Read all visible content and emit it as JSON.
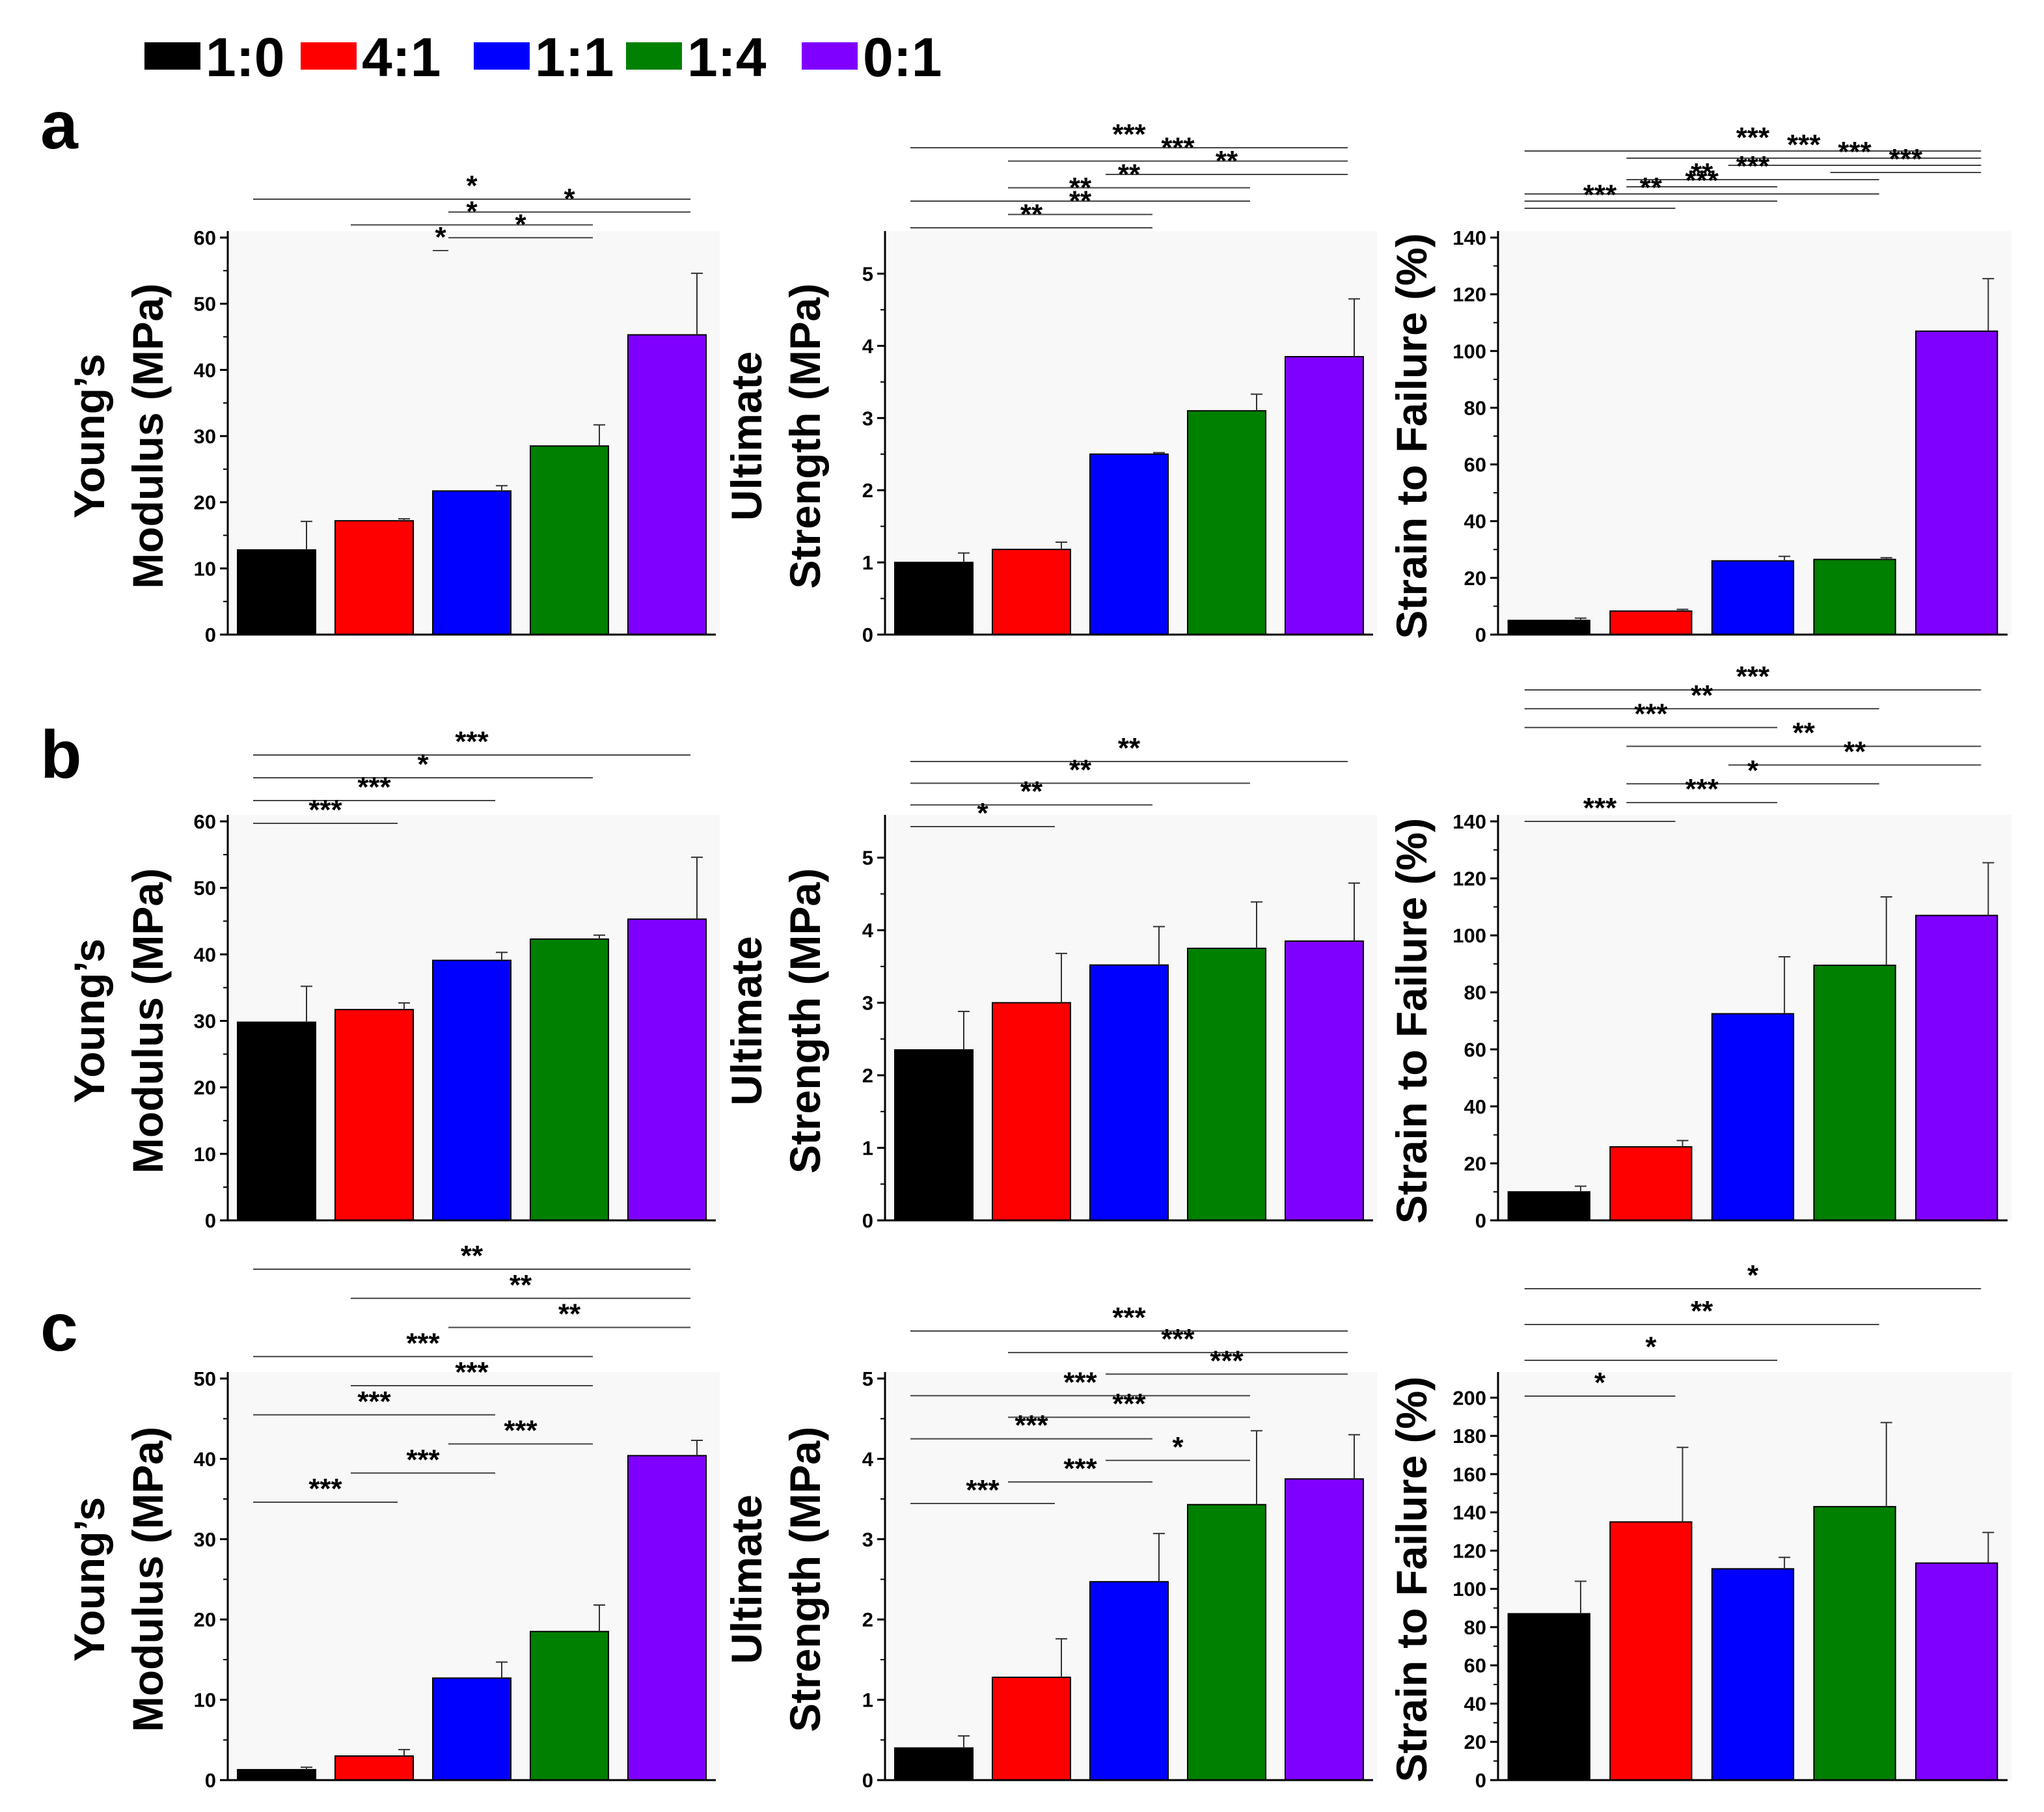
{
  "legend": [
    {
      "label": "1:0",
      "color": "#000000"
    },
    {
      "label": "4:1",
      "color": "#ff0000"
    },
    {
      "label": "1:1",
      "color": "#0000ff"
    },
    {
      "label": "1:4",
      "color": "#008000"
    },
    {
      "label": "0:1",
      "color": "#8000ff"
    }
  ],
  "rows": [
    "a",
    "b",
    "c"
  ],
  "chart_data": [
    {
      "type": "bar",
      "row": "a",
      "ylabel_lines": [
        "Young’s",
        "Modulus (MPa)"
      ],
      "categories": [
        "1:0",
        "4:1",
        "1:1",
        "1:4",
        "0:1"
      ],
      "values": [
        12.8,
        17.2,
        21.7,
        28.5,
        45.3
      ],
      "errors": [
        4.3,
        0.3,
        0.8,
        3.2,
        9.3
      ],
      "ylim": [
        0,
        60
      ],
      "yticks": [
        0,
        10,
        20,
        30,
        40,
        50,
        60
      ],
      "significance": [
        {
          "from": 0,
          "to": 4,
          "label": "*"
        },
        {
          "from": 2,
          "to": 4,
          "label": "*"
        },
        {
          "from": 1,
          "to": 3,
          "label": "*"
        },
        {
          "from": 2,
          "to": 3,
          "label": "*"
        },
        {
          "from": 2,
          "to": 2.3,
          "label": "*"
        }
      ]
    },
    {
      "type": "bar",
      "row": "a",
      "ylabel_lines": [
        "Ultimate",
        "Strength (MPa)"
      ],
      "categories": [
        "1:0",
        "4:1",
        "1:1",
        "1:4",
        "0:1"
      ],
      "values": [
        1.0,
        1.18,
        2.5,
        3.1,
        3.85
      ],
      "errors": [
        0.13,
        0.1,
        0.02,
        0.23,
        0.8
      ],
      "ylim": [
        0,
        5.5
      ],
      "yticks": [
        0,
        1,
        2,
        3,
        4,
        5
      ],
      "significance": [
        {
          "from": 0,
          "to": 4,
          "label": "***"
        },
        {
          "from": 1,
          "to": 4,
          "label": "***"
        },
        {
          "from": 2,
          "to": 4,
          "label": "**"
        },
        {
          "from": 1,
          "to": 3,
          "label": "**"
        },
        {
          "from": 0,
          "to": 3,
          "label": "**"
        },
        {
          "from": 1,
          "to": 2,
          "label": "**"
        },
        {
          "from": 0,
          "to": 2,
          "label": "**"
        }
      ]
    },
    {
      "type": "bar",
      "row": "a",
      "ylabel_lines": [
        "Strain to Failure (%)"
      ],
      "categories": [
        "1:0",
        "4:1",
        "1:1",
        "1:4",
        "0:1"
      ],
      "values": [
        5.0,
        8.3,
        26.0,
        26.5,
        107.0
      ],
      "errors": [
        0.8,
        0.6,
        1.6,
        0.6,
        18.5
      ],
      "ylim": [
        0,
        140
      ],
      "yticks": [
        0,
        20,
        40,
        60,
        80,
        100,
        120,
        140
      ],
      "significance": [
        {
          "from": 0,
          "to": 4,
          "label": "***"
        },
        {
          "from": 1,
          "to": 4,
          "label": "***"
        },
        {
          "from": 2,
          "to": 4,
          "label": "***"
        },
        {
          "from": 3,
          "to": 4,
          "label": "***"
        },
        {
          "from": 1,
          "to": 3,
          "label": "***"
        },
        {
          "from": 1,
          "to": 2,
          "label": "**"
        },
        {
          "from": 0,
          "to": 3,
          "label": "***"
        },
        {
          "from": 0,
          "to": 2,
          "label": "**"
        },
        {
          "from": 0,
          "to": 1,
          "label": "***"
        }
      ]
    },
    {
      "type": "bar",
      "row": "b",
      "ylabel_lines": [
        "Young’s",
        "Modulus (MPa)"
      ],
      "categories": [
        "1:0",
        "4:1",
        "1:1",
        "1:4",
        "0:1"
      ],
      "values": [
        29.8,
        31.7,
        39.1,
        42.3,
        45.3
      ],
      "errors": [
        5.4,
        1.0,
        1.2,
        0.6,
        9.3
      ],
      "ylim": [
        0,
        60
      ],
      "yticks": [
        0,
        10,
        20,
        30,
        40,
        50,
        60
      ],
      "significance": [
        {
          "from": 0,
          "to": 4,
          "label": "***"
        },
        {
          "from": 0,
          "to": 3,
          "label": "*"
        },
        {
          "from": 0,
          "to": 2,
          "label": "***"
        },
        {
          "from": 0,
          "to": 1,
          "label": "***"
        }
      ]
    },
    {
      "type": "bar",
      "row": "b",
      "ylabel_lines": [
        "Ultimate",
        "Strength (MPa)"
      ],
      "categories": [
        "1:0",
        "4:1",
        "1:1",
        "1:4",
        "0:1"
      ],
      "values": [
        2.35,
        3.0,
        3.52,
        3.75,
        3.85
      ],
      "errors": [
        0.53,
        0.68,
        0.53,
        0.64,
        0.8
      ],
      "ylim": [
        0,
        5.5
      ],
      "yticks": [
        0,
        1,
        2,
        3,
        4,
        5
      ],
      "significance": [
        {
          "from": 0,
          "to": 4,
          "label": "**"
        },
        {
          "from": 0,
          "to": 3,
          "label": "**"
        },
        {
          "from": 0,
          "to": 2,
          "label": "**"
        },
        {
          "from": 0,
          "to": 1,
          "label": "*"
        }
      ]
    },
    {
      "type": "bar",
      "row": "b",
      "ylabel_lines": [
        "Strain to Failure (%)"
      ],
      "categories": [
        "1:0",
        "4:1",
        "1:1",
        "1:4",
        "0:1"
      ],
      "values": [
        10.0,
        25.8,
        72.5,
        89.5,
        107.0
      ],
      "errors": [
        2.0,
        2.2,
        20.0,
        24.0,
        18.5
      ],
      "ylim": [
        0,
        140
      ],
      "yticks": [
        0,
        20,
        40,
        60,
        80,
        100,
        120,
        140
      ],
      "significance": [
        {
          "from": 0,
          "to": 4,
          "label": "***"
        },
        {
          "from": 0,
          "to": 3,
          "label": "**"
        },
        {
          "from": 0,
          "to": 2,
          "label": "***"
        },
        {
          "from": 1,
          "to": 4,
          "label": "**"
        },
        {
          "from": 2,
          "to": 4,
          "label": "**"
        },
        {
          "from": 1,
          "to": 3,
          "label": "*"
        },
        {
          "from": 1,
          "to": 2,
          "label": "***"
        },
        {
          "from": 0,
          "to": 1,
          "label": "***"
        }
      ]
    },
    {
      "type": "bar",
      "row": "c",
      "ylabel_lines": [
        "Young’s",
        "Modulus (MPa)"
      ],
      "categories": [
        "1:0",
        "4:1",
        "1:1",
        "1:4",
        "0:1"
      ],
      "values": [
        1.3,
        3.0,
        12.7,
        18.5,
        40.4
      ],
      "errors": [
        0.3,
        0.8,
        2.0,
        3.3,
        1.9
      ],
      "ylim": [
        0,
        50
      ],
      "yticks": [
        0,
        10,
        20,
        30,
        40,
        50
      ],
      "significance": [
        {
          "from": 0,
          "to": 4,
          "label": "**"
        },
        {
          "from": 1,
          "to": 4,
          "label": "**"
        },
        {
          "from": 2,
          "to": 4,
          "label": "**"
        },
        {
          "from": 0,
          "to": 3,
          "label": "***"
        },
        {
          "from": 1,
          "to": 3,
          "label": "***"
        },
        {
          "from": 0,
          "to": 2,
          "label": "***"
        },
        {
          "from": 2,
          "to": 3,
          "label": "***"
        },
        {
          "from": 1,
          "to": 2,
          "label": "***"
        },
        {
          "from": 0,
          "to": 1,
          "label": "***"
        }
      ]
    },
    {
      "type": "bar",
      "row": "c",
      "ylabel_lines": [
        "Ultimate",
        "Strength (MPa)"
      ],
      "categories": [
        "1:0",
        "4:1",
        "1:1",
        "1:4",
        "0:1"
      ],
      "values": [
        0.4,
        1.28,
        2.47,
        3.43,
        3.75
      ],
      "errors": [
        0.15,
        0.48,
        0.6,
        0.92,
        0.55
      ],
      "ylim": [
        0,
        5
      ],
      "yticks": [
        0,
        1,
        2,
        3,
        4,
        5
      ],
      "significance": [
        {
          "from": 0,
          "to": 4,
          "label": "***"
        },
        {
          "from": 1,
          "to": 4,
          "label": "***"
        },
        {
          "from": 2,
          "to": 4,
          "label": "***"
        },
        {
          "from": 0,
          "to": 3,
          "label": "***"
        },
        {
          "from": 1,
          "to": 3,
          "label": "***"
        },
        {
          "from": 0,
          "to": 2,
          "label": "***"
        },
        {
          "from": 2,
          "to": 3,
          "label": "*"
        },
        {
          "from": 1,
          "to": 2,
          "label": "***"
        },
        {
          "from": 0,
          "to": 1,
          "label": "***"
        }
      ]
    },
    {
      "type": "bar",
      "row": "c",
      "ylabel_lines": [
        "Strain to Failure (%)"
      ],
      "categories": [
        "1:0",
        "4:1",
        "1:1",
        "1:4",
        "0:1"
      ],
      "values": [
        87.0,
        135.0,
        110.5,
        143.0,
        113.5
      ],
      "errors": [
        17.0,
        39.0,
        6.0,
        44.0,
        16.0
      ],
      "ylim": [
        0,
        210
      ],
      "yticks": [
        0,
        20,
        40,
        60,
        80,
        100,
        120,
        140,
        160,
        180,
        200
      ],
      "significance": [
        {
          "from": 0,
          "to": 4,
          "label": "*"
        },
        {
          "from": 0,
          "to": 3,
          "label": "**"
        },
        {
          "from": 0,
          "to": 2,
          "label": "*"
        },
        {
          "from": 0,
          "to": 1,
          "label": "*"
        }
      ]
    }
  ]
}
